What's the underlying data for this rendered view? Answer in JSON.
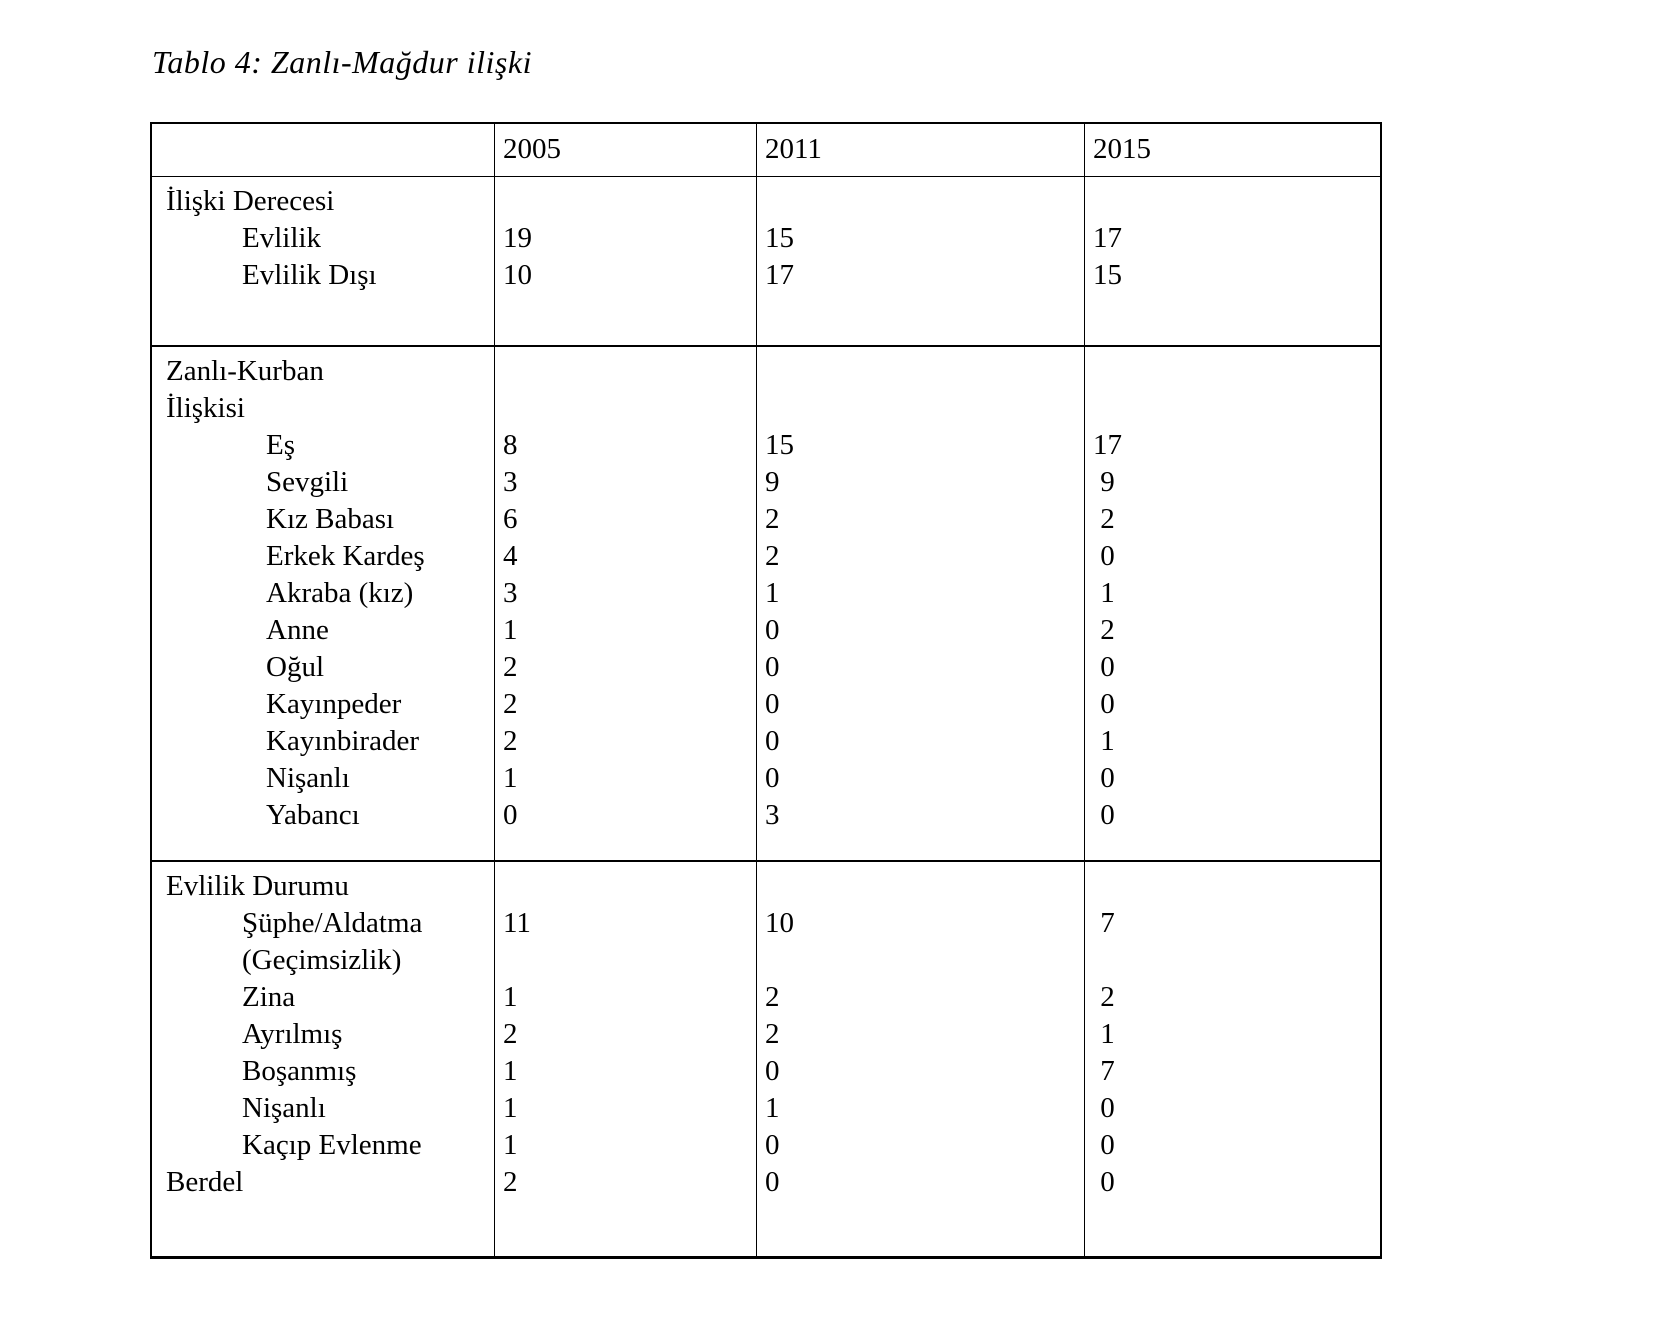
{
  "page": {
    "title": "Tablo 4: Zanlı-Mağdur ilişki"
  },
  "table": {
    "header": {
      "col0": "",
      "years": [
        "2005",
        "2011",
        "2015"
      ]
    },
    "sections": [
      {
        "name": "iliski-derecesi",
        "rows": [
          {
            "label": "İlişki Derecesi",
            "indent": false,
            "values": [
              "",
              "",
              ""
            ]
          },
          {
            "label": "Evlilik",
            "indent": true,
            "values": [
              "19",
              "15",
              "17"
            ]
          },
          {
            "label": "Evlilik Dışı",
            "indent": true,
            "values": [
              "10",
              "17",
              "15"
            ]
          }
        ]
      },
      {
        "name": "zanli-kurban-iliskisi",
        "rows": [
          {
            "label": "Zanlı-Kurban",
            "indent": false,
            "values": [
              "",
              "",
              ""
            ]
          },
          {
            "label": "İlişkisi",
            "indent": false,
            "values": [
              "",
              "",
              ""
            ]
          },
          {
            "label": "Eş",
            "indent": true,
            "values": [
              "8",
              "15",
              "17"
            ]
          },
          {
            "label": "Sevgili",
            "indent": true,
            "values": [
              "3",
              "9",
              " 9"
            ]
          },
          {
            "label": "Kız Babası",
            "indent": true,
            "values": [
              "6",
              "2",
              " 2"
            ]
          },
          {
            "label": "Erkek Kardeş",
            "indent": true,
            "values": [
              "4",
              "2",
              " 0"
            ]
          },
          {
            "label": "Akraba (kız)",
            "indent": true,
            "values": [
              "3",
              "1",
              " 1"
            ]
          },
          {
            "label": "Anne",
            "indent": true,
            "values": [
              "1",
              "0",
              " 2"
            ]
          },
          {
            "label": "Oğul",
            "indent": true,
            "values": [
              "2",
              "0",
              " 0"
            ]
          },
          {
            "label": "Kayınpeder",
            "indent": true,
            "values": [
              "2",
              "0",
              " 0"
            ]
          },
          {
            "label": "Kayınbirader",
            "indent": true,
            "values": [
              "2",
              "0",
              " 1"
            ]
          },
          {
            "label": "Nişanlı",
            "indent": true,
            "values": [
              "1",
              "0",
              " 0"
            ]
          },
          {
            "label": "Yabancı",
            "indent": true,
            "values": [
              "0",
              "3",
              " 0"
            ]
          }
        ]
      },
      {
        "name": "evlilik-durumu",
        "rows": [
          {
            "label": "Evlilik Durumu",
            "indent": false,
            "values": [
              "",
              "",
              ""
            ]
          },
          {
            "label": "Şüphe/Aldatma",
            "indent": true,
            "values": [
              "11",
              "10",
              " 7"
            ]
          },
          {
            "label": "(Geçimsizlik)",
            "indent": true,
            "values": [
              "",
              "",
              ""
            ]
          },
          {
            "label": "Zina",
            "indent": true,
            "values": [
              "1",
              "2",
              " 2"
            ]
          },
          {
            "label": "Ayrılmış",
            "indent": true,
            "values": [
              "2",
              "2",
              " 1"
            ]
          },
          {
            "label": "Boşanmış",
            "indent": true,
            "values": [
              "1",
              "0",
              " 7"
            ]
          },
          {
            "label": "Nişanlı",
            "indent": true,
            "values": [
              "1",
              "1",
              " 0"
            ]
          },
          {
            "label": "Kaçıp Evlenme",
            "indent": true,
            "values": [
              "1",
              "0",
              " 0"
            ]
          },
          {
            "label": "Berdel",
            "indent": false,
            "values": [
              "2",
              "0",
              " 0"
            ]
          }
        ]
      }
    ]
  }
}
